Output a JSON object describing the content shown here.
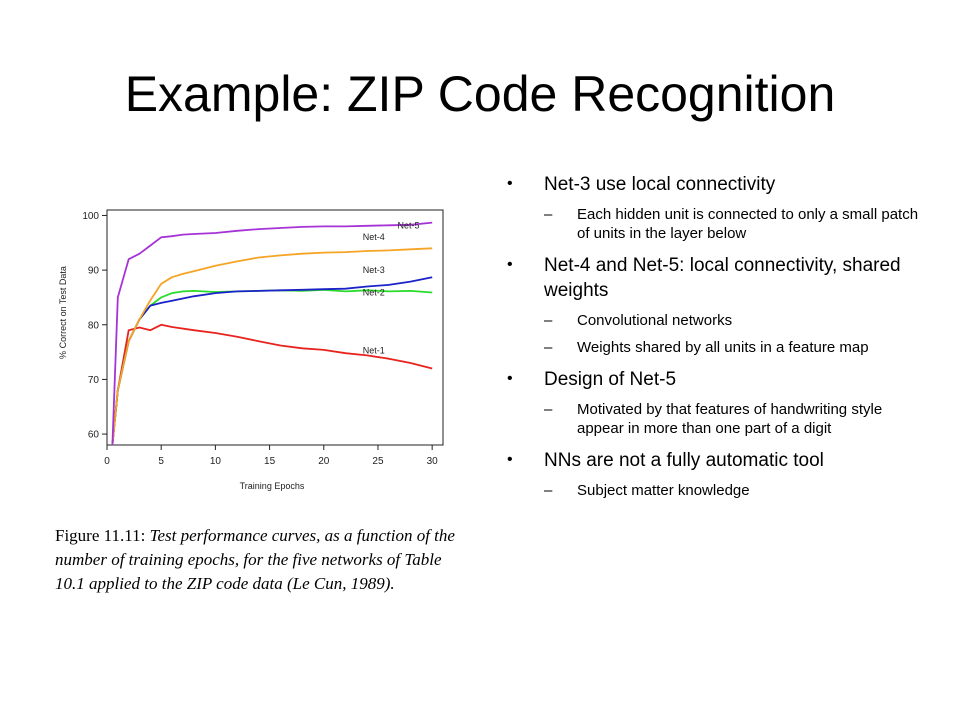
{
  "slide": {
    "title": "Example: ZIP Code Recognition",
    "bullets": [
      {
        "text": "Net-3 use local connectivity",
        "subs": [
          "Each hidden unit is connected to only a small patch of units in the layer below"
        ]
      },
      {
        "text": "Net-4 and Net-5: local connectivity, shared weights",
        "subs": [
          "Convolutional networks",
          "Weights shared by all units in a feature map"
        ]
      },
      {
        "text": "Design of Net-5",
        "subs": [
          "Motivated by that features of handwriting style appear in more than one part of a digit"
        ]
      },
      {
        "text": "NNs are not a fully automatic tool",
        "subs": [
          "Subject matter knowledge"
        ]
      }
    ],
    "bullet_glyph": "•",
    "sub_glyph": "–"
  },
  "caption": {
    "label": "Figure 11.11:",
    "text": "Test performance curves, as a function of the number of training epochs, for the five networks of Table 10.1 applied to the ZIP code data (Le Cun, 1989)."
  },
  "chart_data": {
    "type": "line",
    "xlabel": "Training Epochs",
    "ylabel": "% Correct on Test Data",
    "xlim": [
      0,
      31
    ],
    "ylim": [
      58,
      101
    ],
    "xticks": [
      0,
      5,
      10,
      15,
      20,
      25,
      30
    ],
    "yticks": [
      60,
      70,
      80,
      90,
      100
    ],
    "grid": false,
    "series": [
      {
        "name": "Net-1",
        "color": "#e8231f",
        "x": [
          0.5,
          1,
          2,
          3,
          4,
          5,
          6,
          8,
          10,
          12,
          14,
          16,
          18,
          20,
          22,
          24,
          26,
          28,
          30
        ],
        "y": [
          58,
          68,
          79,
          79.5,
          79,
          80,
          79.6,
          79,
          78.5,
          77.8,
          77,
          76.2,
          75.7,
          75.4,
          74.8,
          74.4,
          73.8,
          73,
          72
        ]
      },
      {
        "name": "Net-2",
        "color": "#2adb2a",
        "x": [
          0.5,
          1,
          2,
          3,
          4,
          5,
          6,
          7,
          8,
          10,
          12,
          14,
          16,
          18,
          20,
          22,
          24,
          26,
          28,
          30
        ],
        "y": [
          58,
          68,
          77,
          81,
          83.5,
          85,
          85.8,
          86.1,
          86.2,
          86,
          86.1,
          86.2,
          86.3,
          86.2,
          86.4,
          86.1,
          86.3,
          86.1,
          86.2,
          85.9
        ]
      },
      {
        "name": "Net-3",
        "color": "#1a22c8",
        "x": [
          0.5,
          1,
          2,
          3,
          4,
          5,
          6,
          8,
          10,
          12,
          14,
          16,
          18,
          20,
          22,
          24,
          26,
          28,
          30
        ],
        "y": [
          58,
          68,
          77,
          81,
          83.5,
          84,
          84.4,
          85.2,
          85.8,
          86.1,
          86.2,
          86.3,
          86.4,
          86.5,
          86.6,
          87,
          87.3,
          87.9,
          88.7
        ]
      },
      {
        "name": "Net-4",
        "color": "#f5a425",
        "x": [
          0.5,
          1,
          2,
          3,
          4,
          5,
          6,
          7,
          8,
          10,
          12,
          14,
          16,
          18,
          20,
          22,
          24,
          26,
          28,
          30
        ],
        "y": [
          58,
          68,
          77,
          81,
          84.5,
          87.5,
          88.7,
          89.3,
          89.8,
          90.8,
          91.6,
          92.3,
          92.7,
          93,
          93.2,
          93.3,
          93.5,
          93.6,
          93.8,
          94
        ]
      },
      {
        "name": "Net-5",
        "color": "#a633d6",
        "x": [
          0.5,
          1,
          2,
          3,
          4,
          5,
          6,
          7,
          8,
          10,
          12,
          14,
          16,
          18,
          20,
          22,
          24,
          26,
          28,
          30
        ],
        "y": [
          58,
          85,
          92,
          93,
          94.5,
          96,
          96.2,
          96.5,
          96.6,
          96.8,
          97.2,
          97.5,
          97.7,
          97.9,
          98,
          98,
          98.1,
          98.2,
          98.3,
          98.7
        ]
      }
    ],
    "labels": [
      {
        "name": "Net-5",
        "x": 26.8,
        "y": 97.6
      },
      {
        "name": "Net-4",
        "x": 23.6,
        "y": 95.5
      },
      {
        "name": "Net-3",
        "x": 23.6,
        "y": 89.5
      },
      {
        "name": "Net-2",
        "x": 23.6,
        "y": 85.4
      },
      {
        "name": "Net-1",
        "x": 23.6,
        "y": 74.7
      }
    ]
  }
}
